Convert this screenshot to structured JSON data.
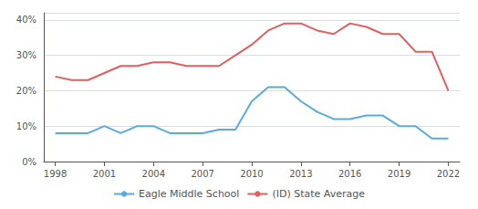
{
  "chart_data": {
    "type": "line",
    "x": [
      1998,
      1999,
      2000,
      2001,
      2002,
      2003,
      2004,
      2005,
      2006,
      2007,
      2008,
      2009,
      2010,
      2011,
      2012,
      2013,
      2014,
      2015,
      2016,
      2017,
      2018,
      2019,
      2020,
      2021,
      2022
    ],
    "series": [
      {
        "name": "Eagle Middle School",
        "color": "#5aabdc",
        "values": [
          0.08,
          0.08,
          0.08,
          0.1,
          0.08,
          0.1,
          0.1,
          0.08,
          0.08,
          0.08,
          0.09,
          0.09,
          0.17,
          0.21,
          0.21,
          0.17,
          0.14,
          0.12,
          0.12,
          0.13,
          0.13,
          0.1,
          0.1,
          0.065,
          0.065
        ]
      },
      {
        "name": "(ID) State Average",
        "color": "#e06060",
        "values": [
          0.24,
          0.23,
          0.23,
          0.25,
          0.27,
          0.27,
          0.28,
          0.28,
          0.27,
          0.27,
          0.27,
          0.3,
          0.33,
          0.37,
          0.39,
          0.39,
          0.37,
          0.36,
          0.39,
          0.38,
          0.36,
          0.36,
          0.31,
          0.31,
          0.2
        ]
      }
    ],
    "xlim": [
      1997.3,
      2022.7
    ],
    "ylim": [
      0.0,
      0.42
    ],
    "xticks": [
      1998,
      2001,
      2004,
      2007,
      2010,
      2013,
      2016,
      2019,
      2022
    ],
    "yticks": [
      {
        "value": 0.0,
        "label": "0%"
      },
      {
        "value": 0.1,
        "label": "10%"
      },
      {
        "value": 0.2,
        "label": "20%"
      },
      {
        "value": 0.3,
        "label": "30%"
      },
      {
        "value": 0.4,
        "label": "40%"
      }
    ],
    "grid": true,
    "legend": "bottom"
  }
}
